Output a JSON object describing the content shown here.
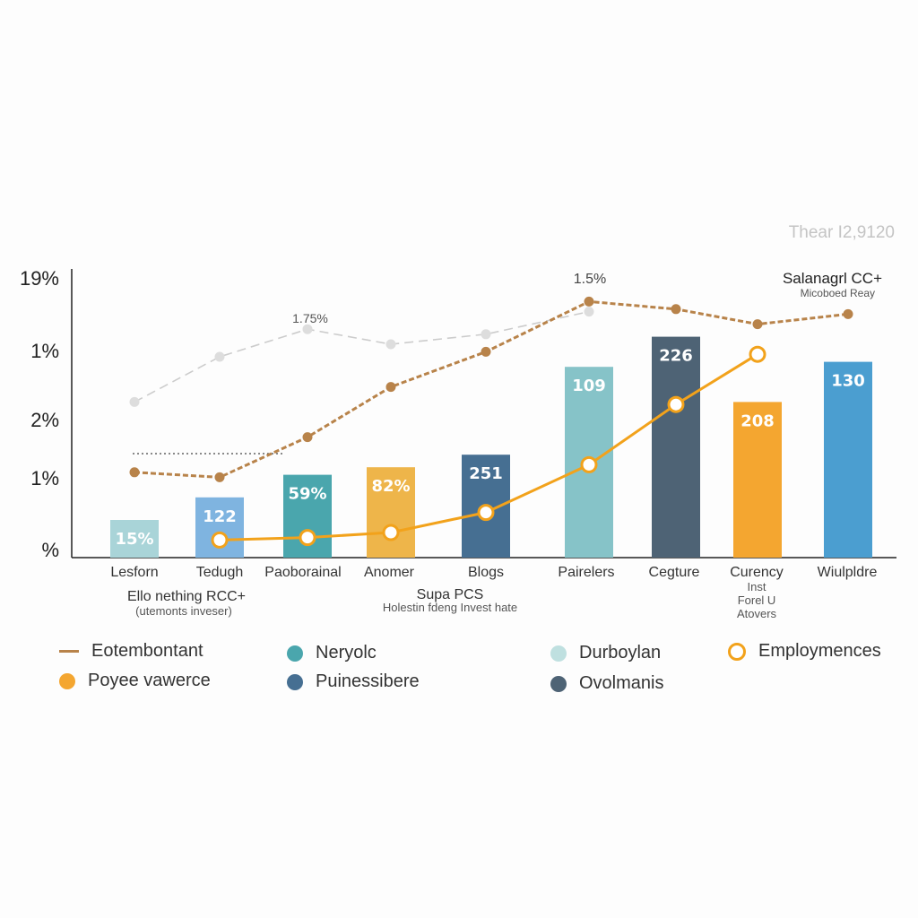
{
  "header": {
    "top_right_caption": "Thear I2,9120",
    "top_right_title": "Salanagrl CC+",
    "top_right_subtitle": "Micoboed Reay"
  },
  "annotations": {
    "peak_label": "1.5%",
    "gray_line_label": "1.75%",
    "group1_title": "Ello nething RCC+",
    "group1_subtitle": "(utemonts inveser)",
    "group2_title": "Supa PCS",
    "group2_subtitle": "Holestin fdeng Invest hate",
    "currency_sub1": "Inst",
    "currency_sub2": "Forel U",
    "currency_sub3": "Atovers"
  },
  "chart_data": {
    "type": "bar",
    "categories": [
      "Lesforn",
      "Tedugh",
      "Paoborainal",
      "Anomer",
      "Blogs",
      "Pairelers",
      "Cegture",
      "Curency",
      "Wiulpldre"
    ],
    "y_tick_labels": [
      "19%",
      "1%",
      "2%",
      "1%",
      "%"
    ],
    "bar_series": {
      "values": [
        15,
        24,
        33,
        36,
        41,
        76,
        88,
        62,
        78
      ],
      "labels": [
        "15%",
        "122",
        "59%",
        "82%",
        "251",
        "109",
        "226",
        "208",
        "130"
      ],
      "colors": [
        "#a9d4d8",
        "#7fb4e0",
        "#4aa6ad",
        "#eeb54a",
        "#466f92",
        "#86c3c8",
        "#4e6375",
        "#f4a630",
        "#4b9ed0"
      ]
    },
    "lines": [
      {
        "name": "Eotembontant",
        "style": "dashed-brown",
        "color": "#b8834a",
        "values": [
          34,
          32,
          48,
          68,
          82,
          102,
          99,
          93,
          97
        ]
      },
      {
        "name": "Employmences",
        "style": "solid-orange",
        "color": "#f2a21b",
        "values": [
          null,
          7,
          8,
          10,
          18,
          37,
          61,
          81,
          null
        ]
      },
      {
        "name": "",
        "style": "light-gray",
        "color": "#cccccc",
        "values": [
          62,
          80,
          91,
          85,
          89,
          98,
          null,
          null,
          null
        ]
      }
    ],
    "ylim": [
      0,
      116
    ]
  },
  "legend": {
    "items": [
      {
        "label": "Eotembontant",
        "swatch": "line",
        "color": "#b8834a"
      },
      {
        "label": "Poyee vawerce",
        "swatch": "dot",
        "color": "#f4a630"
      },
      {
        "label": "Neryolc",
        "swatch": "dot",
        "color": "#4aa6ad"
      },
      {
        "label": "Puinessibere",
        "swatch": "dot",
        "color": "#466f92"
      },
      {
        "label": "Durboylan",
        "swatch": "dot",
        "color": "#bfe0e0"
      },
      {
        "label": "Ovolmanis",
        "swatch": "dot",
        "color": "#4e6375"
      },
      {
        "label": "Employmences",
        "swatch": "ring",
        "color": "#f2a21b"
      }
    ]
  }
}
